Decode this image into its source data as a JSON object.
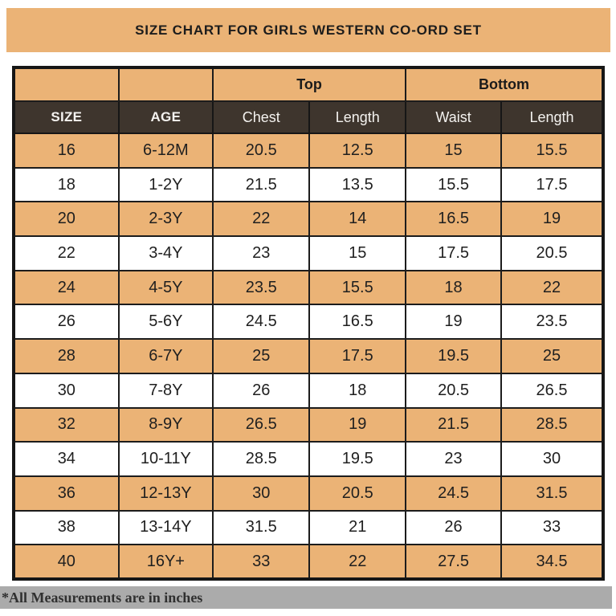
{
  "title": "SIZE CHART FOR GIRLS WESTERN CO-ORD SET",
  "table": {
    "group_headers": [
      {
        "label": "",
        "span": 1
      },
      {
        "label": "",
        "span": 1
      },
      {
        "label": "Top",
        "span": 2
      },
      {
        "label": "Bottom",
        "span": 2
      }
    ],
    "column_headers": [
      "SIZE",
      "AGE",
      "Chest",
      "Length",
      "Waist",
      "Length"
    ],
    "rows": [
      [
        "16",
        "6-12M",
        "20.5",
        "12.5",
        "15",
        "15.5"
      ],
      [
        "18",
        "1-2Y",
        "21.5",
        "13.5",
        "15.5",
        "17.5"
      ],
      [
        "20",
        "2-3Y",
        "22",
        "14",
        "16.5",
        "19"
      ],
      [
        "22",
        "3-4Y",
        "23",
        "15",
        "17.5",
        "20.5"
      ],
      [
        "24",
        "4-5Y",
        "23.5",
        "15.5",
        "18",
        "22"
      ],
      [
        "26",
        "5-6Y",
        "24.5",
        "16.5",
        "19",
        "23.5"
      ],
      [
        "28",
        "6-7Y",
        "25",
        "17.5",
        "19.5",
        "25"
      ],
      [
        "30",
        "7-8Y",
        "26",
        "18",
        "20.5",
        "26.5"
      ],
      [
        "32",
        "8-9Y",
        "26.5",
        "19",
        "21.5",
        "28.5"
      ],
      [
        "34",
        "10-11Y",
        "28.5",
        "19.5",
        "23",
        "30"
      ],
      [
        "36",
        "12-13Y",
        "30",
        "20.5",
        "24.5",
        "31.5"
      ],
      [
        "38",
        "13-14Y",
        "31.5",
        "21",
        "26",
        "33"
      ],
      [
        "40",
        "16Y+",
        "33",
        "22",
        "27.5",
        "34.5"
      ]
    ]
  },
  "footer": {
    "note": "*All Measurements are in inches"
  },
  "colors": {
    "tan": "#EBB376",
    "header_brown": "#3E352D",
    "footer_gray": "#ABABAB",
    "border_black": "#161616"
  }
}
